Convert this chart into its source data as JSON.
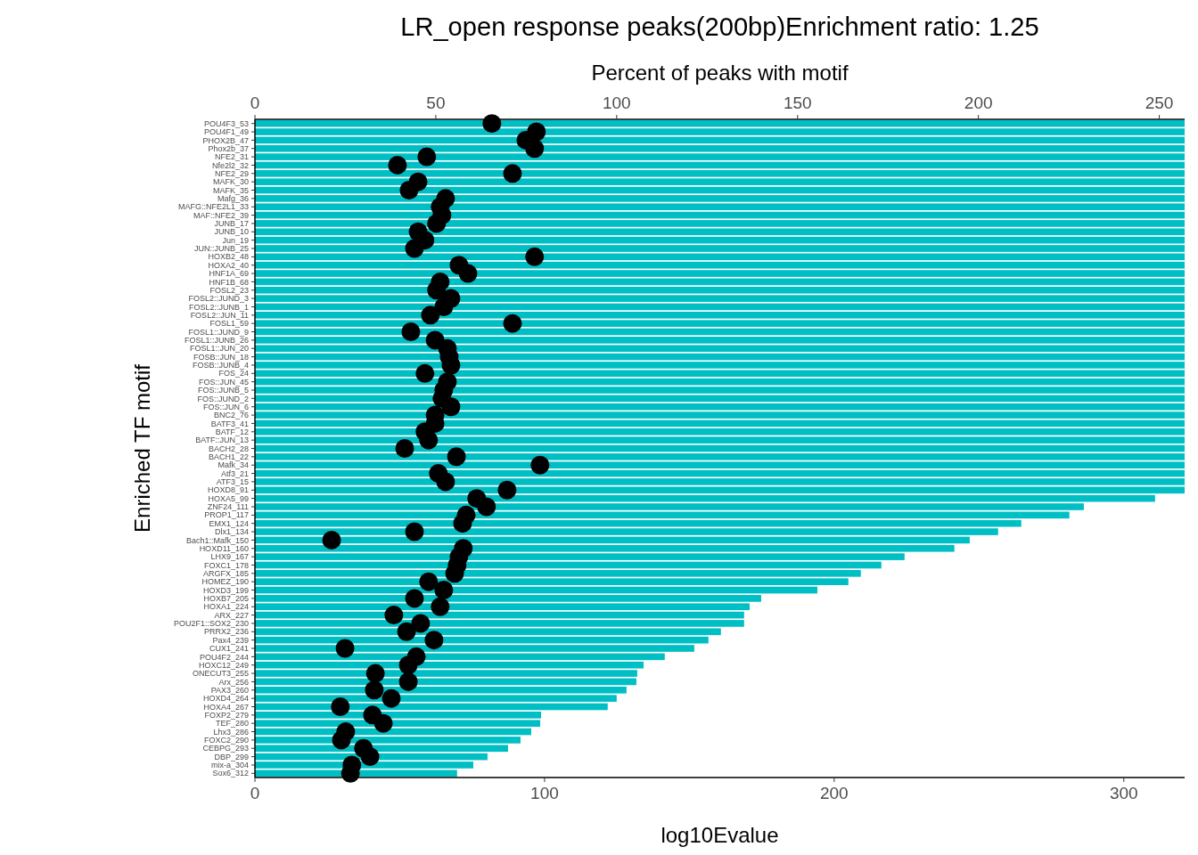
{
  "chart_data": {
    "type": "bar",
    "orientation": "horizontal",
    "title": "LR_open response peaks(200bp)Enrichment ratio: 1.25",
    "xlabel": "log10Evalue",
    "x2label": "Percent of peaks with motif",
    "ylabel": "Enriched TF motif",
    "categories": [
      "POU4F3_53",
      "POU4F1_49",
      "PHOX2B_47",
      "Phox2b_37",
      "NFE2_31",
      "Nfe2l2_32",
      "NFE2_29",
      "MAFK_30",
      "MAFK_35",
      "Mafg_36",
      "MAFG::NFE2L1_33",
      "MAF::NFE2_39",
      "JUNB_17",
      "JUNB_10",
      "Jun_19",
      "JUN::JUNB_25",
      "HOXB2_48",
      "HOXA2_40",
      "HNF1A_69",
      "HNF1B_68",
      "FOSL2_23",
      "FOSL2::JUND_3",
      "FOSL2::JUNB_1",
      "FOSL2::JUN_11",
      "FOSL1_59",
      "FOSL1::JUND_9",
      "FOSL1::JUNB_26",
      "FOSL1::JUN_20",
      "FOSB::JUN_18",
      "FOSB::JUNB_4",
      "FOS_24",
      "FOS::JUN_45",
      "FOS::JUNB_5",
      "FOS::JUND_2",
      "FOS::JUN_6",
      "BNC2_76",
      "BATF3_41",
      "BATF_12",
      "BATF::JUN_13",
      "BACH2_28",
      "BACH1_22",
      "Mafk_34",
      "Atf3_21",
      "ATF3_15",
      "HOXD8_91",
      "HOXA5_99",
      "ZNF24_111",
      "PROP1_117",
      "EMX1_124",
      "Dlx1_134",
      "Bach1::Mafk_150",
      "HOXD11_160",
      "LHX9_167",
      "FOXC1_178",
      "ARGFX_185",
      "HOMEZ_190",
      "HOXD3_199",
      "HOXB7_205",
      "HOXA1_224",
      "ARX_227",
      "POU2F1::SOX2_230",
      "PRRX2_236",
      "Pax4_239",
      "CUX1_241",
      "POU4F2_244",
      "HOXC12_249",
      "ONECUT3_255",
      "Arx_256",
      "PAX3_260",
      "HOXD4_264",
      "HOXA4_267",
      "FOXP2_279",
      "TEF_280",
      "Lhx3_286",
      "FOXC2_290",
      "CEBPG_293",
      "DBP_299",
      "mix-a_304",
      "Sox6_312"
    ],
    "series": [
      {
        "color": "#00bfc4",
        "values": [
          321,
          321,
          321,
          321,
          321,
          321,
          321,
          321,
          321,
          321,
          321,
          321,
          321,
          321,
          321,
          321,
          321,
          321,
          321,
          321,
          321,
          321,
          321,
          321,
          321,
          321,
          321,
          321,
          321,
          321,
          321,
          321,
          321,
          321,
          321,
          321,
          321,
          321,
          321,
          321,
          321,
          321,
          321,
          321,
          321,
          310.8,
          286.2,
          281.2,
          264.6,
          256.6,
          246.8,
          241.5,
          224.3,
          216.3,
          209.2,
          204.9,
          194.2,
          174.8,
          170.8,
          168.9,
          168.9,
          160.9,
          156.6,
          151.7,
          141.5,
          134.2,
          132,
          131.7,
          128.3,
          124.9,
          121.8,
          98.8,
          98.5,
          95.4,
          91.7,
          87.4,
          80.3,
          75.4,
          69.8
        ]
      },
      {
        "type": "scatter",
        "axis": "x2",
        "color": "#000000",
        "values": [
          65.5,
          77.8,
          74.9,
          77.3,
          47.5,
          39.4,
          71.2,
          45.1,
          42.6,
          52.7,
          51.2,
          51.7,
          50.2,
          45.1,
          47.0,
          44.1,
          77.3,
          56.4,
          58.9,
          51.2,
          50.2,
          54.2,
          52.2,
          48.5,
          71.2,
          43.1,
          49.8,
          53.2,
          53.7,
          54.2,
          47.0,
          53.2,
          52.2,
          51.7,
          54.2,
          49.8,
          49.8,
          47.0,
          48.0,
          41.4,
          55.7,
          78.8,
          50.7,
          52.7,
          69.7,
          61.3,
          64.0,
          58.4,
          57.4,
          44.1,
          21.2,
          57.6,
          56.4,
          55.9,
          55.2,
          48.0,
          52.2,
          44.1,
          51.2,
          38.4,
          45.8,
          41.9,
          49.5,
          24.9,
          44.6,
          42.4,
          33.3,
          42.4,
          33.0,
          37.7,
          23.6,
          32.5,
          35.5,
          25.1,
          23.9,
          30.0,
          31.8,
          26.8,
          26.4
        ]
      }
    ],
    "marker": "circle",
    "xlim": [
      0,
      321
    ],
    "xticks": [
      0,
      100,
      200,
      300
    ],
    "x2lim": [
      0,
      257
    ],
    "x2ticks": [
      0,
      50,
      100,
      150,
      200,
      250
    ]
  }
}
